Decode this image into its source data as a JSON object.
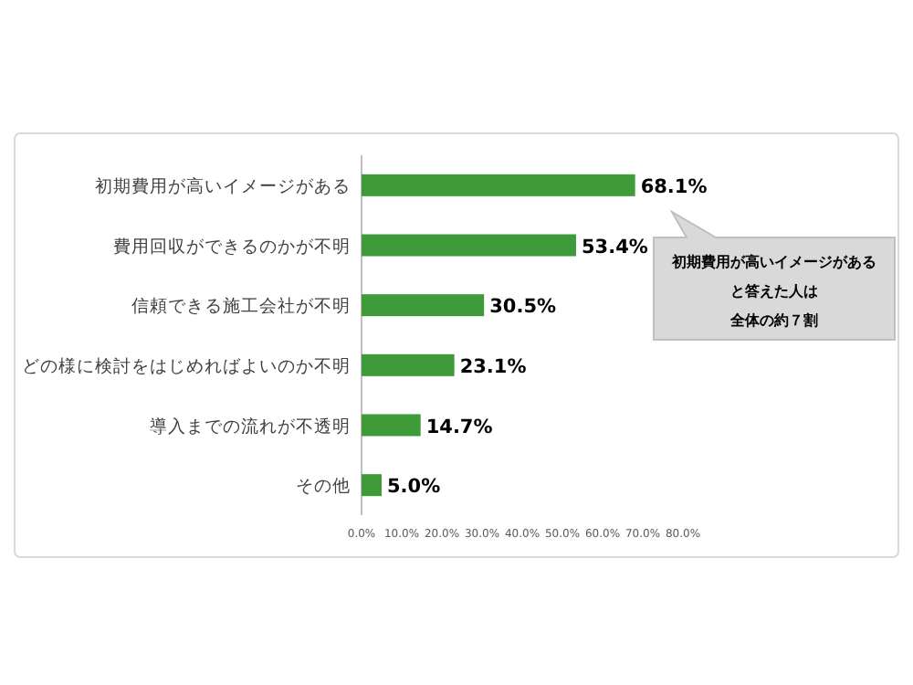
{
  "chart_data": {
    "type": "bar",
    "orientation": "horizontal",
    "categories": [
      "初期費用が高いイメージがある",
      "費用回収ができるのかが不明",
      "信頼できる施工会社が不明",
      "どの様に検討をはじめればよいのか不明",
      "導入までの流れが不透明",
      "その他"
    ],
    "values": [
      68.1,
      53.4,
      30.5,
      23.1,
      14.7,
      5.0
    ],
    "value_labels": [
      "68.1%",
      "53.4%",
      "30.5%",
      "23.1%",
      "14.7%",
      "5.0%"
    ],
    "color": "#3f9a3a",
    "xlim": [
      0,
      80
    ],
    "xticks": [
      {
        "value": 0,
        "label": "0.0%"
      },
      {
        "value": 10,
        "label": "10.0%"
      },
      {
        "value": 20,
        "label": "20.0%"
      },
      {
        "value": 30,
        "label": "30.0%"
      },
      {
        "value": 40,
        "label": "40.0%"
      },
      {
        "value": 50,
        "label": "50.0%"
      },
      {
        "value": 60,
        "label": "60.0%"
      },
      {
        "value": 70,
        "label": "70.0%"
      },
      {
        "value": 80,
        "label": "80.0%"
      }
    ],
    "annotations": [
      "初期費用が高いイメージがある",
      "と答えた人は",
      "全体の約７割"
    ]
  }
}
